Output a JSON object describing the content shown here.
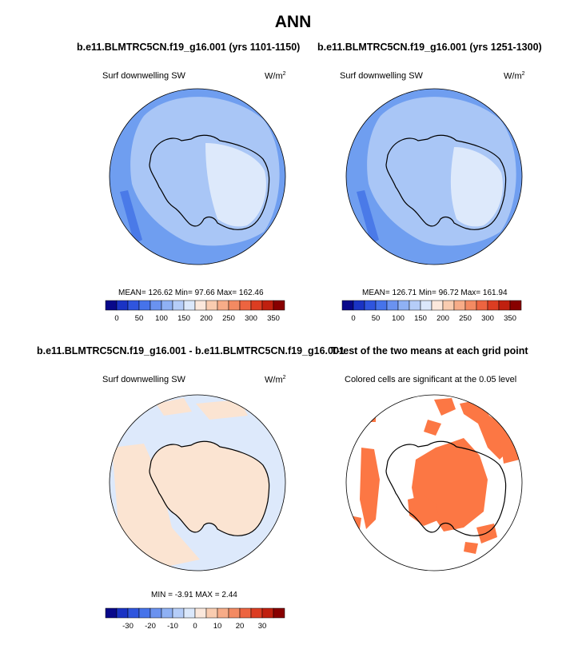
{
  "main_title": "ANN",
  "colors": {
    "ocean": "#6f9ef0",
    "ice_light": "#a9c6f6",
    "ice_lighter": "#dde9fb",
    "deep_blue": "#4a7ae8",
    "diff_blue": "#dde9fb",
    "diff_orange": "#fbe4d2",
    "signif": "#fc7744",
    "coast": "#000000"
  },
  "panels": {
    "top_left": {
      "title": "b.e11.BLMTRC5CN.f19_g16.001 (yrs 1101-1150)",
      "variable": "Surf downwelling SW",
      "units_base": "W/m",
      "units_sup": "2",
      "stats": "MEAN= 126.62  Min=  97.66  Max= 162.46"
    },
    "top_right": {
      "title": "b.e11.BLMTRC5CN.f19_g16.001 (yrs 1251-1300)",
      "variable": "Surf downwelling SW",
      "units_base": "W/m",
      "units_sup": "2",
      "stats": "MEAN= 126.71  Min=  96.72  Max= 161.94"
    },
    "bottom_left": {
      "title": "b.e11.BLMTRC5CN.f19_g16.001 - b.e11.BLMTRC5CN.f19_g16.001",
      "variable": "Surf downwelling SW",
      "units_base": "W/m",
      "units_sup": "2",
      "stats": "MIN =  -3.91  MAX =   2.44"
    },
    "bottom_right": {
      "title": "T-test of the two means at each grid point",
      "subtitle": "Colored cells are significant at the 0.05 level"
    }
  },
  "colorbar_abs": {
    "colors": [
      "#08088a",
      "#1a33c4",
      "#2f55de",
      "#4673ea",
      "#6a92f0",
      "#8fb1f4",
      "#b5cdf8",
      "#dbe8fb",
      "#fbe8dc",
      "#f9ccb0",
      "#f7ac88",
      "#f38a62",
      "#ed6440",
      "#dc3d22",
      "#c0200f",
      "#880000"
    ],
    "ticks": [
      "0",
      "50",
      "100",
      "150",
      "200",
      "250",
      "300",
      "350"
    ]
  },
  "colorbar_diff": {
    "colors": [
      "#08088a",
      "#1a33c4",
      "#2f55de",
      "#4673ea",
      "#6a92f0",
      "#8fb1f4",
      "#b5cdf8",
      "#dbe8fb",
      "#fbe8dc",
      "#f9ccb0",
      "#f7ac88",
      "#f38a62",
      "#ed6440",
      "#dc3d22",
      "#c0200f",
      "#880000"
    ],
    "ticks": [
      "-30",
      "-20",
      "-10",
      "0",
      "10",
      "20",
      "30"
    ]
  }
}
